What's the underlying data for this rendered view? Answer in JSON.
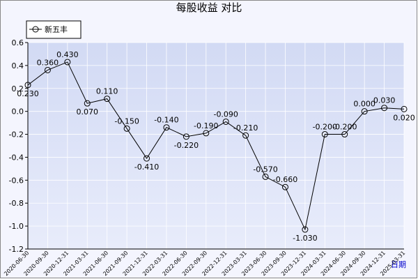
{
  "chart_data": {
    "type": "line",
    "title": "每股收益 对比",
    "x_label": "日期",
    "categories": [
      "2020-06-30",
      "2020-09-30",
      "2020-12-31",
      "2021-03-31",
      "2021-06-30",
      "2021-09-30",
      "2021-12-31",
      "2022-03-31",
      "2022-06-30",
      "2022-09-30",
      "2022-12-31",
      "2023-03-31",
      "2023-06-30",
      "2023-09-30",
      "2023-12-31",
      "2024-03-31",
      "2024-06-30",
      "2024-09-30",
      "2024-12-31",
      "2025-03-31"
    ],
    "series": [
      {
        "name": "新五丰",
        "color": "#000000",
        "values": [
          0.23,
          0.36,
          0.43,
          0.07,
          0.11,
          -0.15,
          -0.41,
          -0.14,
          -0.22,
          -0.19,
          -0.09,
          -0.21,
          -0.57,
          -0.66,
          -1.03,
          -0.2,
          -0.2,
          0,
          0.03,
          0.02
        ],
        "value_labels": [
          "0.230",
          "0.360",
          "0.430",
          "0.070",
          "0.110",
          "-0.150",
          "-0.410",
          "-0.140",
          "-0.220",
          "-0.190",
          "-0.090",
          "-0.210",
          "-0.570",
          "-0.660",
          "-1.030",
          "-0.200",
          "-0.200",
          "0.000",
          "0.030",
          "0.020"
        ]
      }
    ],
    "ylim": [
      -1.2,
      0.6
    ],
    "yticks": [
      0.6,
      0.4,
      0.2,
      {
        "value": 0,
        "label": "0.0"
      },
      -0.2,
      -0.4,
      -0.6,
      -0.8,
      {
        "value": -1,
        "label": "-1.0"
      },
      -1.2
    ],
    "grid": true,
    "legend": "top-left"
  }
}
